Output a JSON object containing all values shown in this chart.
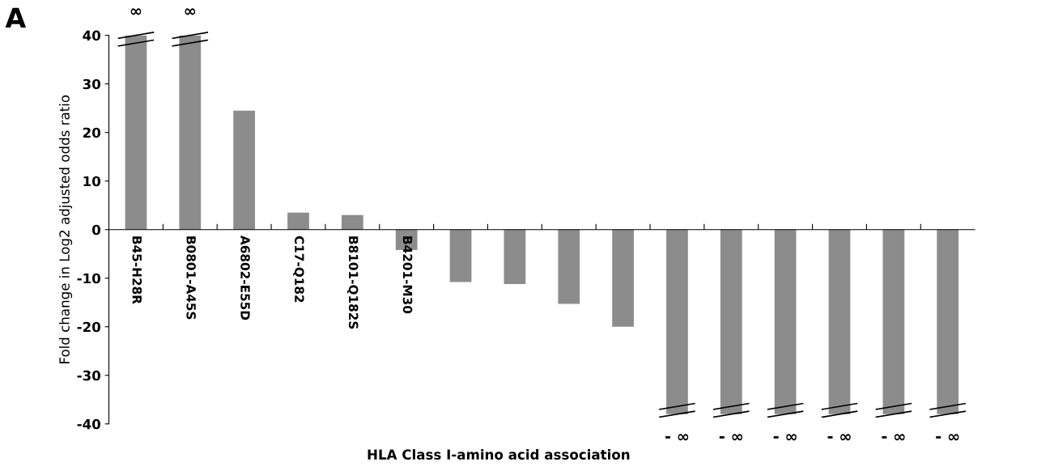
{
  "chart_data": {
    "type": "bar",
    "title": "A",
    "xlabel": "HLA Class I-amino acid association",
    "ylabel": "Fold change in Log2 adjusted odds ratio",
    "categories": [
      "B45-H28R",
      "B0801-A45S",
      "A6802-E55D",
      "C17-Q182",
      "B8101-Q182S",
      "B4201-M30",
      null,
      null,
      null,
      null,
      null,
      null,
      null,
      null,
      null,
      null
    ],
    "values": [
      40,
      40,
      24.5,
      3.5,
      3,
      -4.2,
      -10.8,
      -11.2,
      -15.3,
      -20,
      -38,
      -38,
      -38,
      -38,
      -38,
      -38
    ],
    "value_labels": [
      "∞",
      "∞",
      null,
      null,
      null,
      null,
      null,
      null,
      null,
      null,
      "- ∞",
      "- ∞",
      "- ∞",
      "- ∞",
      "- ∞",
      "- ∞"
    ],
    "color": "#8c8c8c",
    "ylim": [
      -40,
      40
    ],
    "yticks": [
      -40,
      -30,
      -20,
      -10,
      0,
      10,
      20,
      30,
      40
    ],
    "grid": false,
    "legend": false
  }
}
